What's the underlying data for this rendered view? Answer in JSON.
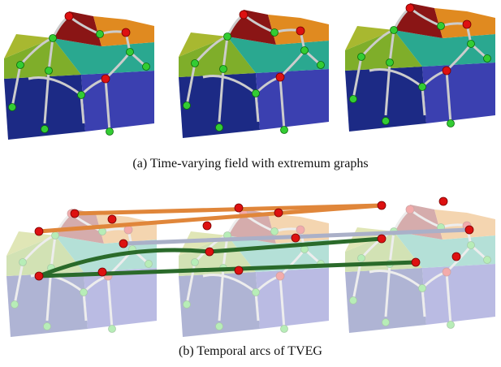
{
  "captions": [
    "(a) Time-varying field with extremum graphs",
    "(b) Temporal arcs of TVEG"
  ]
}
